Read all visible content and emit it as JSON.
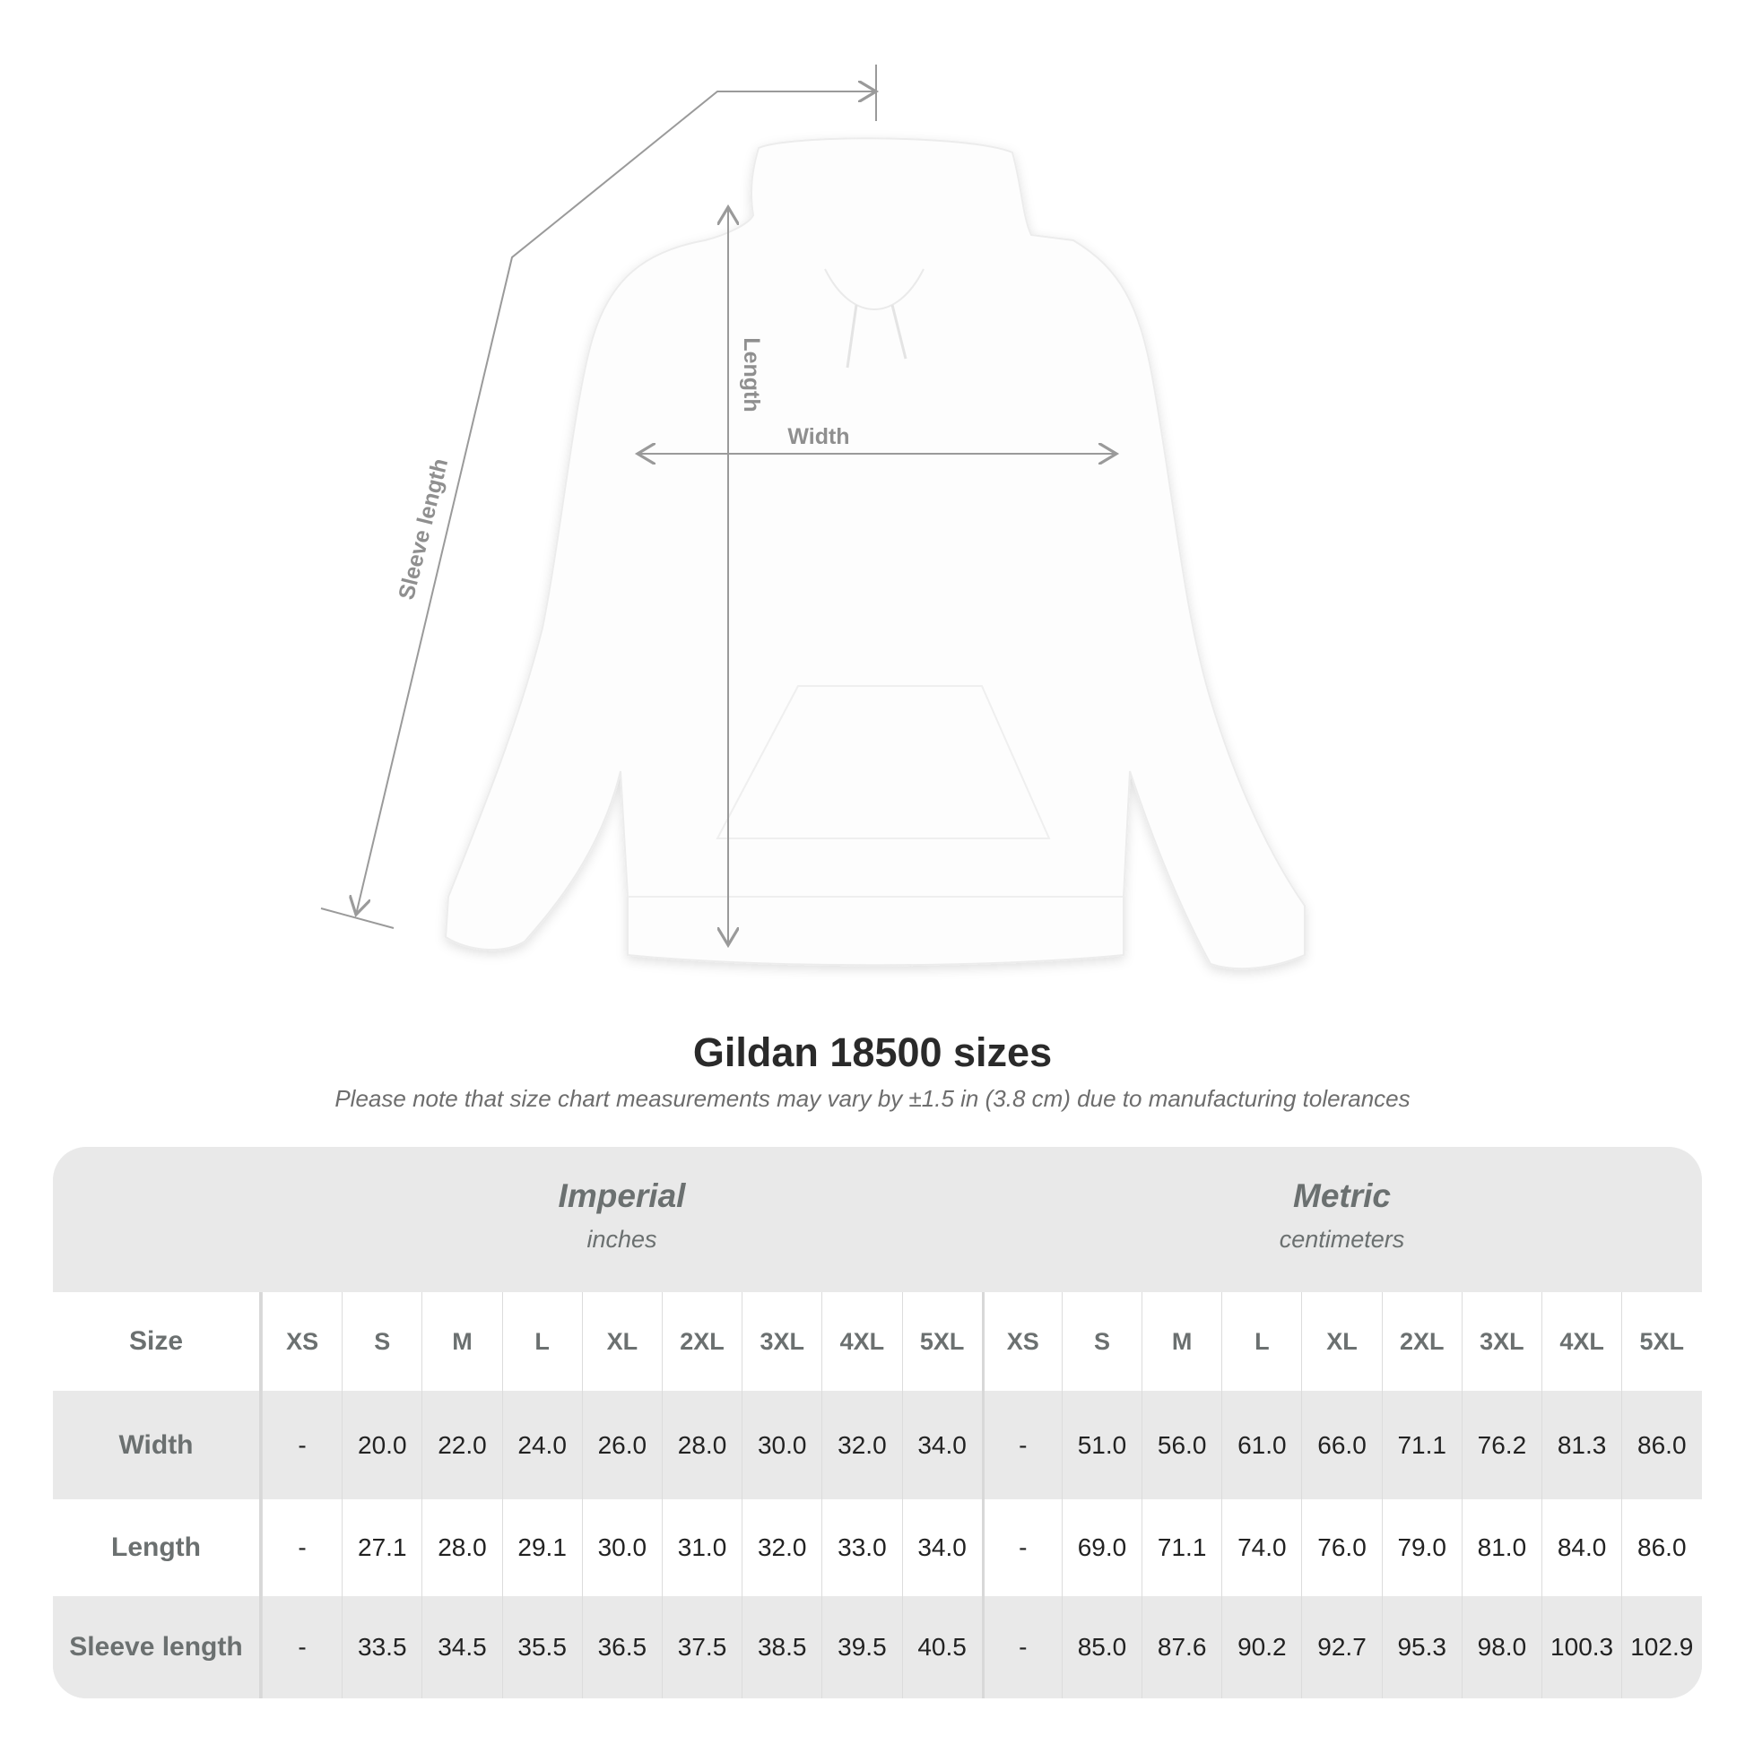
{
  "diagram": {
    "labels": {
      "sleeve": "Sleeve length",
      "length": "Length",
      "width": "Width"
    },
    "line_color": "#9a9a9a"
  },
  "title": "Gildan 18500 sizes",
  "subtitle": "Please note that size chart measurements may vary by ±1.5 in (3.8 cm) due to manufacturing tolerances",
  "table": {
    "imperial": {
      "name": "Imperial",
      "unit": "inches"
    },
    "metric": {
      "name": "Metric",
      "unit": "centimeters"
    },
    "size_label": "Size",
    "sizes": [
      "XS",
      "S",
      "M",
      "L",
      "XL",
      "2XL",
      "3XL",
      "4XL",
      "5XL"
    ],
    "rows": [
      {
        "label": "Width",
        "imperial": [
          "-",
          "20.0",
          "22.0",
          "24.0",
          "26.0",
          "28.0",
          "30.0",
          "32.0",
          "34.0"
        ],
        "metric": [
          "-",
          "51.0",
          "56.0",
          "61.0",
          "66.0",
          "71.1",
          "76.2",
          "81.3",
          "86.0"
        ]
      },
      {
        "label": "Length",
        "imperial": [
          "-",
          "27.1",
          "28.0",
          "29.1",
          "30.0",
          "31.0",
          "32.0",
          "33.0",
          "34.0"
        ],
        "metric": [
          "-",
          "69.0",
          "71.1",
          "74.0",
          "76.0",
          "79.0",
          "81.0",
          "84.0",
          "86.0"
        ]
      },
      {
        "label": "Sleeve length",
        "imperial": [
          "-",
          "33.5",
          "34.5",
          "35.5",
          "36.5",
          "37.5",
          "38.5",
          "39.5",
          "40.5"
        ],
        "metric": [
          "-",
          "85.0",
          "87.6",
          "90.2",
          "92.7",
          "95.3",
          "98.0",
          "100.3",
          "102.9"
        ]
      }
    ],
    "colors": {
      "band": "#e9e9e9",
      "header_text": "#6b7070"
    }
  }
}
